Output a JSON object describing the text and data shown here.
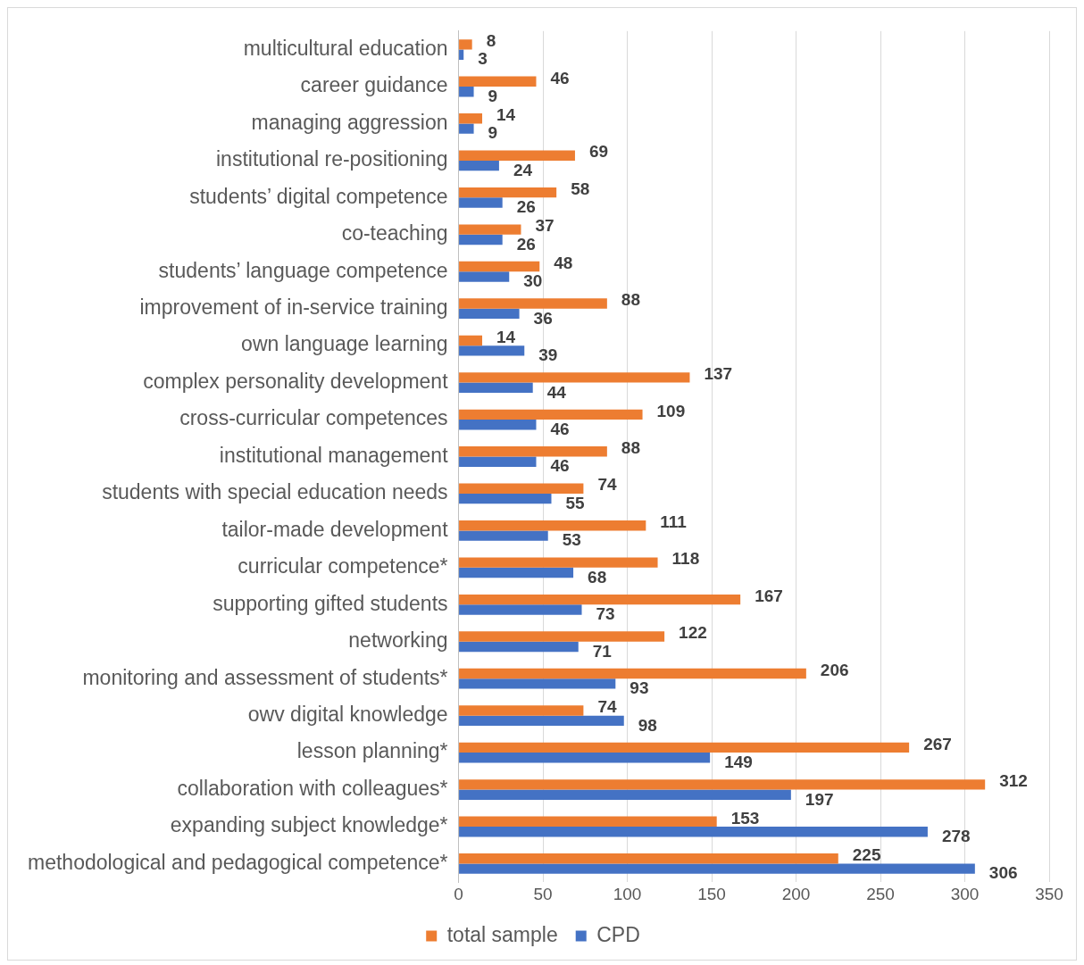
{
  "chart_data": {
    "type": "bar",
    "orientation": "horizontal",
    "categories": [
      "multicultural education",
      "career guidance",
      "managing aggression",
      "institutional re-positioning",
      "students’ digital competence",
      "co-teaching",
      "students’ language competence",
      "improvement of in-service training",
      "own language learning",
      "complex personality development",
      "cross-curricular competences",
      "institutional management",
      "students with special education needs",
      "tailor-made development",
      "curricular competence*",
      "supporting gifted students",
      "networking",
      "monitoring and assessment of students*",
      "owv digital knowledge",
      "lesson planning*",
      "collaboration with colleagues*",
      "expanding subject knowledge*",
      "methodological and pedagogical competence*"
    ],
    "series": [
      {
        "name": "total sample",
        "color": "#ed7d31",
        "values": [
          8,
          46,
          14,
          69,
          58,
          37,
          48,
          88,
          14,
          137,
          109,
          88,
          74,
          111,
          118,
          167,
          122,
          206,
          74,
          267,
          312,
          153,
          225
        ]
      },
      {
        "name": "CPD",
        "color": "#4472c4",
        "values": [
          3,
          9,
          9,
          24,
          26,
          26,
          30,
          36,
          39,
          44,
          46,
          46,
          55,
          53,
          68,
          73,
          71,
          93,
          98,
          149,
          197,
          278,
          306
        ]
      }
    ],
    "xlim": [
      0,
      350
    ],
    "xticks": [
      0,
      50,
      100,
      150,
      200,
      250,
      300,
      350
    ],
    "grid": "x",
    "legend": "bottom",
    "data_labels": true
  }
}
